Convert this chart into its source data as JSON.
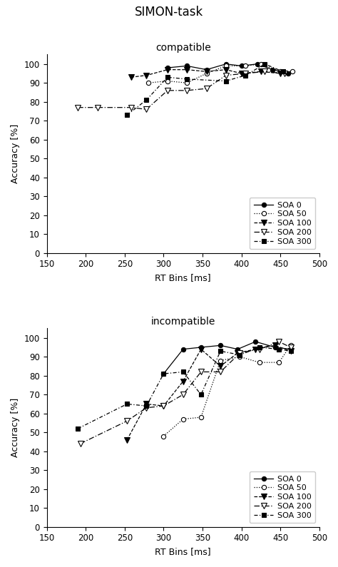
{
  "title": "SIMON-task",
  "panel1_title": "compatible",
  "panel2_title": "incompatible",
  "xlabel": "RT Bins [ms]",
  "ylabel": "Accuracy [%]",
  "xlim": [
    150,
    500
  ],
  "ylim": [
    0,
    105
  ],
  "xticks": [
    150,
    200,
    250,
    300,
    350,
    400,
    450,
    500
  ],
  "yticks": [
    0,
    10,
    20,
    30,
    40,
    50,
    60,
    70,
    80,
    90,
    100
  ],
  "background_color": "#ffffff",
  "compatible": {
    "SOA0": {
      "x": [
        305,
        330,
        355,
        380,
        400,
        420,
        440,
        460
      ],
      "y": [
        98,
        99,
        97,
        100,
        99,
        100,
        97,
        95
      ]
    },
    "SOA50": {
      "x": [
        280,
        305,
        330,
        355,
        380,
        405,
        425,
        450,
        465
      ],
      "y": [
        90,
        91,
        90,
        95,
        99,
        99,
        100,
        96,
        96
      ]
    },
    "SOA100": {
      "x": [
        258,
        278,
        305,
        330,
        355,
        380,
        400,
        425,
        450
      ],
      "y": [
        93,
        94,
        97,
        97,
        96,
        97,
        95,
        96,
        95
      ]
    },
    "SOA200": {
      "x": [
        190,
        215,
        258,
        278,
        305,
        330,
        355,
        380,
        405,
        430,
        455
      ],
      "y": [
        77,
        77,
        77,
        76,
        86,
        86,
        87,
        94,
        95,
        96,
        95
      ]
    },
    "SOA300": {
      "x": [
        253,
        278,
        305,
        330,
        380,
        405,
        430,
        453
      ],
      "y": [
        73,
        81,
        93,
        92,
        91,
        94,
        100,
        96
      ]
    }
  },
  "incompatible": {
    "SOA0": {
      "x": [
        300,
        325,
        348,
        373,
        395,
        418,
        443,
        463
      ],
      "y": [
        81,
        94,
        95,
        96,
        94,
        98,
        95,
        94
      ]
    },
    "SOA50": {
      "x": [
        300,
        325,
        348,
        373,
        398,
        423,
        448,
        463
      ],
      "y": [
        48,
        57,
        58,
        88,
        90,
        87,
        87,
        96
      ]
    },
    "SOA100": {
      "x": [
        253,
        278,
        300,
        325,
        348,
        373,
        395,
        418,
        443,
        463
      ],
      "y": [
        46,
        65,
        64,
        77,
        94,
        85,
        92,
        94,
        96,
        93
      ]
    },
    "SOA200": {
      "x": [
        193,
        253,
        278,
        300,
        325,
        348,
        373,
        398,
        423,
        448,
        463
      ],
      "y": [
        44,
        56,
        63,
        64,
        70,
        82,
        82,
        92,
        94,
        98,
        95
      ]
    },
    "SOA300": {
      "x": [
        190,
        253,
        278,
        300,
        325,
        348,
        373,
        398,
        423,
        448,
        463
      ],
      "y": [
        52,
        65,
        64,
        81,
        82,
        70,
        93,
        91,
        95,
        94,
        93
      ]
    }
  }
}
